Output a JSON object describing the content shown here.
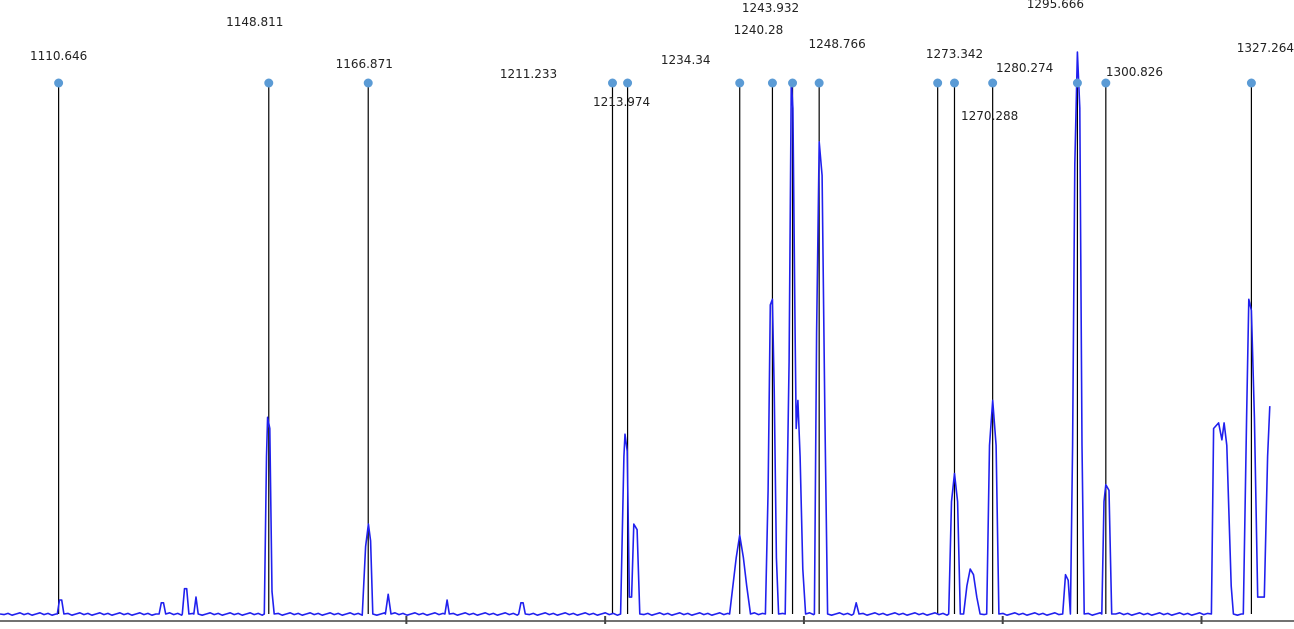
{
  "colors": {
    "trace": "#2020ee",
    "marker": "#5b9bd5",
    "line": "#000000",
    "axis": "#444444",
    "background": "#ffffff"
  },
  "chart_data": {
    "type": "line",
    "title": "",
    "xlabel": "",
    "ylabel": "",
    "xlim": [
      1100,
      1335
    ],
    "ylim": [
      0,
      1
    ],
    "grid": false,
    "legend": "none",
    "tick_marks_x": [
      1173.8,
      1209.9,
      1246.0,
      1282.1,
      1318.2
    ],
    "peak_annotations": [
      {
        "label": "1110.646",
        "x": 1110.646
      },
      {
        "label": "1148.811",
        "x": 1148.811
      },
      {
        "label": "1166.871",
        "x": 1166.871
      },
      {
        "label": "1211.233",
        "x": 1211.233
      },
      {
        "label": "1213.974",
        "x": 1213.974
      },
      {
        "label": "1234.34",
        "x": 1234.34
      },
      {
        "label": "1240.28",
        "x": 1240.28
      },
      {
        "label": "1243.932",
        "x": 1243.932
      },
      {
        "label": "1248.766",
        "x": 1248.766
      },
      {
        "label": "1270.288",
        "x": 1270.288
      },
      {
        "label": "1273.342",
        "x": 1273.342
      },
      {
        "label": "1280.274",
        "x": 1280.274
      },
      {
        "label": "1295.666",
        "x": 1295.666
      },
      {
        "label": "1300.826",
        "x": 1300.826
      },
      {
        "label": "1327.264",
        "x": 1327.264
      }
    ],
    "series": [
      {
        "points": [
          [
            1100.0,
            0.0
          ],
          [
            1110.4,
            0.0
          ],
          [
            1110.8,
            0.025
          ],
          [
            1111.2,
            0.025
          ],
          [
            1111.6,
            0.0
          ],
          [
            1128.9,
            0.0
          ],
          [
            1129.3,
            0.02
          ],
          [
            1129.7,
            0.02
          ],
          [
            1130.1,
            0.0
          ],
          [
            1133.1,
            0.0
          ],
          [
            1133.5,
            0.045
          ],
          [
            1133.9,
            0.045
          ],
          [
            1134.3,
            0.0
          ],
          [
            1135.2,
            0.0
          ],
          [
            1135.6,
            0.03
          ],
          [
            1136.0,
            0.0
          ],
          [
            1148.0,
            0.0
          ],
          [
            1148.4,
            0.28
          ],
          [
            1148.6,
            0.35
          ],
          [
            1149.0,
            0.33
          ],
          [
            1149.4,
            0.04
          ],
          [
            1149.8,
            0.0
          ],
          [
            1165.8,
            0.0
          ],
          [
            1166.4,
            0.12
          ],
          [
            1166.9,
            0.16
          ],
          [
            1167.3,
            0.13
          ],
          [
            1167.7,
            0.0
          ],
          [
            1170.0,
            0.0
          ],
          [
            1170.5,
            0.035
          ],
          [
            1171.0,
            0.0
          ],
          [
            1180.8,
            0.0
          ],
          [
            1181.2,
            0.025
          ],
          [
            1181.6,
            0.0
          ],
          [
            1194.2,
            0.0
          ],
          [
            1194.6,
            0.02
          ],
          [
            1195.0,
            0.02
          ],
          [
            1195.4,
            0.0
          ],
          [
            1212.7,
            0.0
          ],
          [
            1213.3,
            0.28
          ],
          [
            1213.5,
            0.32
          ],
          [
            1213.9,
            0.29
          ],
          [
            1214.3,
            0.03
          ],
          [
            1214.7,
            0.03
          ],
          [
            1215.1,
            0.16
          ],
          [
            1215.7,
            0.15
          ],
          [
            1216.2,
            0.0
          ],
          [
            1232.5,
            0.0
          ],
          [
            1233.7,
            0.1
          ],
          [
            1234.34,
            0.14
          ],
          [
            1235.0,
            0.1
          ],
          [
            1235.6,
            0.05
          ],
          [
            1236.3,
            0.0
          ],
          [
            1239.0,
            0.0
          ],
          [
            1239.5,
            0.22
          ],
          [
            1239.9,
            0.55
          ],
          [
            1240.28,
            0.56
          ],
          [
            1240.6,
            0.4
          ],
          [
            1241.0,
            0.1
          ],
          [
            1241.4,
            0.0
          ],
          [
            1242.6,
            0.0
          ],
          [
            1243.3,
            0.45
          ],
          [
            1243.7,
            0.95
          ],
          [
            1244.0,
            0.9
          ],
          [
            1244.4,
            0.5
          ],
          [
            1244.6,
            0.33
          ],
          [
            1244.9,
            0.38
          ],
          [
            1245.3,
            0.28
          ],
          [
            1245.8,
            0.08
          ],
          [
            1246.3,
            0.0
          ],
          [
            1247.9,
            0.0
          ],
          [
            1248.3,
            0.5
          ],
          [
            1248.766,
            0.84
          ],
          [
            1249.3,
            0.78
          ],
          [
            1249.8,
            0.35
          ],
          [
            1250.3,
            0.0
          ],
          [
            1255.0,
            0.0
          ],
          [
            1255.5,
            0.02
          ],
          [
            1256.0,
            0.0
          ],
          [
            1272.3,
            0.0
          ],
          [
            1272.8,
            0.2
          ],
          [
            1273.342,
            0.25
          ],
          [
            1273.9,
            0.2
          ],
          [
            1274.4,
            0.0
          ],
          [
            1275.0,
            0.0
          ],
          [
            1275.6,
            0.05
          ],
          [
            1276.2,
            0.08
          ],
          [
            1276.8,
            0.07
          ],
          [
            1277.4,
            0.03
          ],
          [
            1278.0,
            0.0
          ],
          [
            1279.2,
            0.0
          ],
          [
            1279.7,
            0.3
          ],
          [
            1280.274,
            0.38
          ],
          [
            1280.9,
            0.3
          ],
          [
            1281.4,
            0.0
          ],
          [
            1293.0,
            0.0
          ],
          [
            1293.5,
            0.07
          ],
          [
            1294.0,
            0.06
          ],
          [
            1294.4,
            0.0
          ],
          [
            1294.8,
            0.3
          ],
          [
            1295.2,
            0.8
          ],
          [
            1295.666,
            1.0
          ],
          [
            1296.1,
            0.9
          ],
          [
            1296.5,
            0.3
          ],
          [
            1296.9,
            0.0
          ],
          [
            1300.1,
            0.0
          ],
          [
            1300.5,
            0.2
          ],
          [
            1300.826,
            0.23
          ],
          [
            1301.4,
            0.22
          ],
          [
            1301.9,
            0.0
          ],
          [
            1320.0,
            0.0
          ],
          [
            1320.4,
            0.33
          ],
          [
            1321.3,
            0.34
          ],
          [
            1321.9,
            0.31
          ],
          [
            1322.3,
            0.34
          ],
          [
            1322.8,
            0.3
          ],
          [
            1323.6,
            0.05
          ],
          [
            1324.0,
            0.0
          ],
          [
            1325.8,
            0.0
          ],
          [
            1326.4,
            0.35
          ],
          [
            1326.8,
            0.56
          ],
          [
            1327.264,
            0.54
          ],
          [
            1327.8,
            0.35
          ],
          [
            1328.4,
            0.03
          ],
          [
            1329.6,
            0.03
          ],
          [
            1330.2,
            0.28
          ],
          [
            1330.6,
            0.37
          ],
          [
            1330.6,
            0.37
          ]
        ]
      }
    ]
  }
}
